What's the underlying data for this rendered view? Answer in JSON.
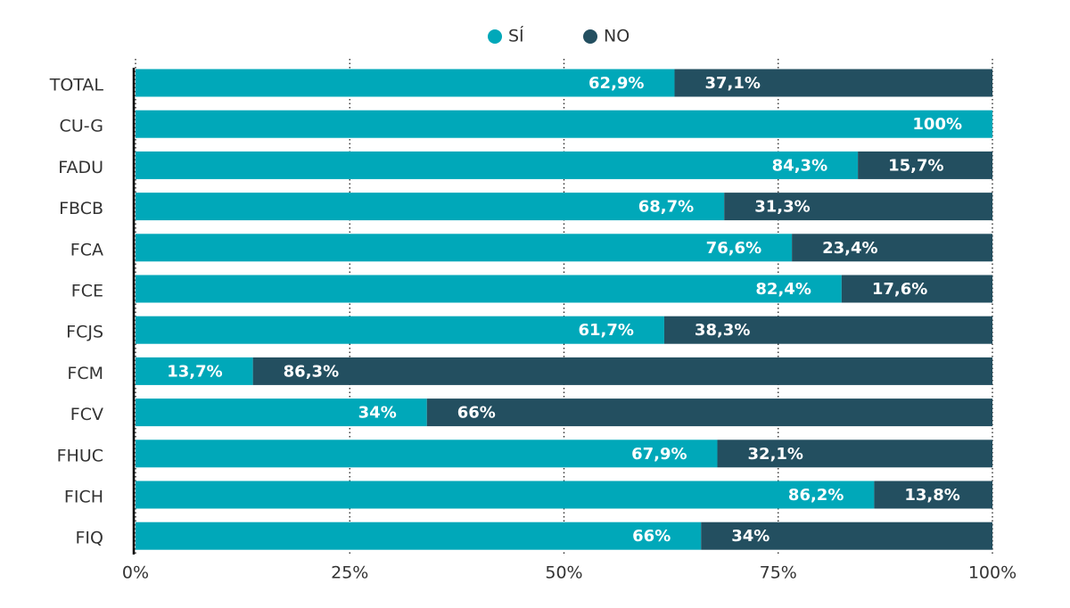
{
  "chart_data": {
    "type": "stacked-bar-horizontal",
    "categories": [
      "TOTAL",
      "CU-G",
      "FADU",
      "FBCB",
      "FCA",
      "FCE",
      "FCJS",
      "FCM",
      "FCV",
      "FHUC",
      "FICH",
      "FIQ"
    ],
    "series": [
      {
        "name": "SÍ",
        "color": "#00a8b9",
        "values": [
          62.9,
          100,
          84.3,
          68.7,
          76.6,
          82.4,
          61.7,
          13.7,
          34,
          67.9,
          86.2,
          66
        ],
        "value_labels": [
          "62,9%",
          "100%",
          "84,3%",
          "68,7%",
          "76,6%",
          "82,4%",
          "61,7%",
          "13,7%",
          "34%",
          "67,9%",
          "86,2%",
          "66%"
        ]
      },
      {
        "name": "NO",
        "color": "#234f60",
        "values": [
          37.1,
          0,
          15.7,
          31.3,
          23.4,
          17.6,
          38.3,
          86.3,
          66,
          32.1,
          13.8,
          34
        ],
        "value_labels": [
          "37,1%",
          null,
          "15,7%",
          "31,3%",
          "23,4%",
          "17,6%",
          "38,3%",
          "86,3%",
          "66%",
          "32,1%",
          "13,8%",
          "34%"
        ]
      }
    ],
    "xlim": [
      0,
      100
    ],
    "xticks": [
      {
        "value": 0,
        "label": "0%"
      },
      {
        "value": 25,
        "label": "25%"
      },
      {
        "value": 50,
        "label": "50%"
      },
      {
        "value": 75,
        "label": "75%"
      },
      {
        "value": 100,
        "label": "100%"
      }
    ],
    "grid": true,
    "legend": "top"
  }
}
